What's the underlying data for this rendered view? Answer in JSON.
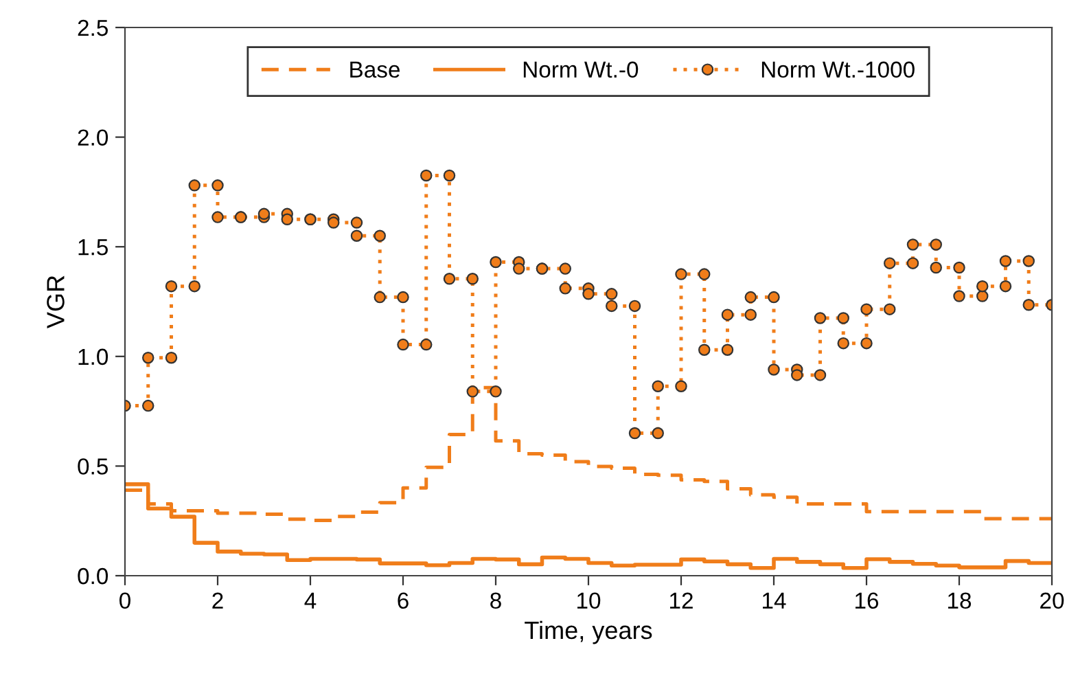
{
  "chart_data": {
    "type": "step",
    "xlabel": "Time, years",
    "ylabel": "VGR",
    "x": [
      0,
      0.5,
      1,
      1.5,
      2,
      2.5,
      3,
      3.5,
      4,
      4.5,
      5,
      5.5,
      6,
      6.5,
      7,
      7.5,
      8,
      8.5,
      9,
      9.5,
      10,
      10.5,
      11,
      11.5,
      12,
      12.5,
      13,
      13.5,
      14,
      14.5,
      15,
      15.5,
      16,
      16.5,
      17,
      17.5,
      18,
      18.5,
      19,
      19.5,
      20
    ],
    "series": [
      {
        "name": "Base",
        "color": "#f07d1a",
        "line_style": "dashed",
        "marker": "none",
        "values": [
          0.39,
          0.327,
          0.296,
          0.296,
          0.285,
          0.285,
          0.28,
          0.258,
          0.252,
          0.27,
          0.29,
          0.333,
          0.4,
          0.494,
          0.644,
          0.858,
          0.615,
          0.556,
          0.55,
          0.52,
          0.498,
          0.49,
          0.462,
          0.458,
          0.437,
          0.43,
          0.396,
          0.369,
          0.358,
          0.327,
          0.327,
          0.327,
          0.292,
          0.292,
          0.292,
          0.292,
          0.292,
          0.26,
          0.26,
          0.26,
          0.26
        ]
      },
      {
        "name": "Norm Wt.-0",
        "color": "#f07d1a",
        "line_style": "solid",
        "marker": "none",
        "values": [
          0.417,
          0.306,
          0.269,
          0.15,
          0.11,
          0.1,
          0.097,
          0.071,
          0.077,
          0.077,
          0.074,
          0.056,
          0.056,
          0.048,
          0.058,
          0.077,
          0.074,
          0.052,
          0.083,
          0.077,
          0.058,
          0.046,
          0.05,
          0.05,
          0.074,
          0.065,
          0.052,
          0.035,
          0.077,
          0.063,
          0.052,
          0.035,
          0.075,
          0.063,
          0.054,
          0.046,
          0.038,
          0.038,
          0.067,
          0.058,
          0.058
        ]
      },
      {
        "name": "Norm Wt.-1000",
        "type": "line",
        "color": "#f07d1a",
        "line_style": "dotted",
        "marker": "circle",
        "x": [
          0,
          0.5,
          0.5,
          1,
          1,
          1.5,
          1.5,
          2,
          2,
          2.5,
          2.5,
          3,
          3,
          3.5,
          3.5,
          4,
          4,
          4.5,
          4.5,
          5,
          5,
          5.5,
          5.5,
          6,
          6,
          6.5,
          6.5,
          7,
          7,
          7.5,
          7.5,
          8,
          8,
          8.5,
          8.5,
          9,
          9,
          9.5,
          9.5,
          10,
          10,
          10.5,
          10.5,
          11,
          11,
          11.5,
          11.5,
          12,
          12,
          12.5,
          12.5,
          13,
          13,
          13.5,
          13.5,
          14,
          14,
          14.5,
          14.5,
          15,
          15,
          15.5,
          15.5,
          16,
          16,
          16.5,
          16.5,
          17,
          17,
          17.5,
          17.5,
          18,
          18,
          18.5,
          18.5,
          19,
          19,
          19.5,
          19.5,
          20
        ],
        "values": [
          0.775,
          0.775,
          0.994,
          0.994,
          1.32,
          1.32,
          1.78,
          1.78,
          1.635,
          1.635,
          1.635,
          1.635,
          1.65,
          1.65,
          1.625,
          1.625,
          1.625,
          1.625,
          1.61,
          1.61,
          1.55,
          1.55,
          1.27,
          1.27,
          1.054,
          1.054,
          1.825,
          1.825,
          1.354,
          1.354,
          0.84,
          0.84,
          1.43,
          1.43,
          1.4,
          1.4,
          1.4,
          1.4,
          1.31,
          1.31,
          1.285,
          1.285,
          1.23,
          1.23,
          0.65,
          0.65,
          0.864,
          0.864,
          1.375,
          1.375,
          1.03,
          1.03,
          1.19,
          1.19,
          1.27,
          1.27,
          0.94,
          0.94,
          0.915,
          0.915,
          1.175,
          1.175,
          1.06,
          1.06,
          1.215,
          1.215,
          1.425,
          1.425,
          1.51,
          1.51,
          1.405,
          1.405,
          1.275,
          1.275,
          1.32,
          1.32,
          1.435,
          1.435,
          1.235,
          1.235
        ]
      }
    ],
    "xlim": [
      0,
      20
    ],
    "xticks": [
      0,
      2,
      4,
      6,
      8,
      10,
      12,
      14,
      16,
      18,
      20
    ],
    "ylim": [
      0,
      2.5
    ],
    "yticks": [
      {
        "value": 0,
        "label": "0.0"
      },
      {
        "value": 0.5,
        "label": "0.5"
      },
      {
        "value": 1,
        "label": "1.0"
      },
      {
        "value": 1.5,
        "label": "1.5"
      },
      {
        "value": 2,
        "label": "2.0"
      },
      {
        "value": 2.5,
        "label": "2.5"
      }
    ],
    "grid": false,
    "legend": "top"
  }
}
